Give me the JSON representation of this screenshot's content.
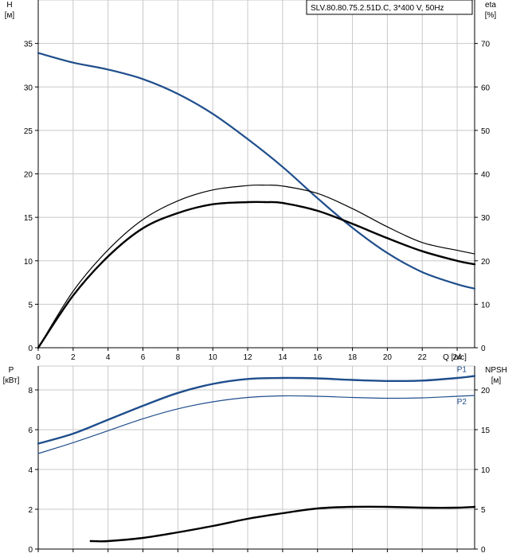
{
  "legend": "SLV.80.80.75.2.51D.C, 3*400 V, 50Hz",
  "top_chart": {
    "left_axis_label": "H",
    "left_axis_unit": "[м]",
    "right_axis_label": "eta",
    "right_axis_unit": "[%]",
    "x_axis_label": "Q [л/с]"
  },
  "bottom_chart": {
    "left_axis_label": "P",
    "left_axis_unit": "[кВт]",
    "right_axis_label": "NPSH",
    "right_axis_unit": "[м]"
  },
  "colors": {
    "blue": "#1f4e8c",
    "black": "#000000",
    "grid": "#c8c8c8"
  },
  "chart_data": [
    {
      "type": "line",
      "x_label": "Q [л/с]",
      "xlim": [
        0,
        25
      ],
      "x_ticks": [
        0,
        2,
        4,
        6,
        8,
        10,
        12,
        14,
        16,
        18,
        20,
        22,
        24
      ],
      "y_left_ticks": [
        0,
        5,
        10,
        15,
        20,
        25,
        30,
        35
      ],
      "y_right_ticks": [
        0,
        10,
        20,
        30,
        40,
        50,
        60,
        70
      ],
      "ylim_left": [
        0,
        40
      ],
      "ylim_right": [
        0,
        80
      ],
      "series": [
        {
          "axis": "left",
          "color": "#1f4e8c",
          "width": 2.2,
          "x": [
            0,
            2,
            4,
            6,
            8,
            10,
            12,
            14,
            16,
            18,
            20,
            22,
            24,
            25
          ],
          "y": [
            33.9,
            32.8,
            32.0,
            30.9,
            29.2,
            26.9,
            24.0,
            20.8,
            17.2,
            13.8,
            10.9,
            8.7,
            7.3,
            6.8
          ]
        },
        {
          "axis": "right",
          "color": "#000000",
          "width": 1.2,
          "x": [
            0,
            2,
            4,
            6,
            8,
            10,
            12,
            13,
            14,
            16,
            18,
            20,
            22,
            24,
            25
          ],
          "y": [
            0,
            13,
            22.5,
            29.5,
            33.8,
            36.3,
            37.3,
            37.4,
            37.2,
            35.5,
            32.0,
            27.8,
            24.2,
            22.4,
            21.6
          ]
        },
        {
          "axis": "right",
          "color": "#000000",
          "width": 2.4,
          "x": [
            0,
            2,
            4,
            6,
            8,
            10,
            12,
            13,
            14,
            16,
            18,
            20,
            22,
            24,
            25
          ],
          "y": [
            0,
            12,
            21,
            27.5,
            31.0,
            33.0,
            33.5,
            33.5,
            33.3,
            31.5,
            28.5,
            25.2,
            22.2,
            20.0,
            19.2
          ]
        }
      ]
    },
    {
      "type": "line",
      "xlim": [
        0,
        25
      ],
      "x_ticks": [
        0,
        2,
        4,
        6,
        8,
        10,
        12,
        14,
        16,
        18,
        20,
        22,
        24
      ],
      "y_left_ticks": [
        0,
        2,
        4,
        6,
        8
      ],
      "y_right_ticks": [
        0,
        5,
        10,
        15,
        20
      ],
      "ylim_left": [
        0,
        9.2
      ],
      "ylim_right": [
        0,
        23
      ],
      "series": [
        {
          "name": "P1",
          "axis": "left",
          "color": "#1f4e8c",
          "width": 2.4,
          "x": [
            0,
            2,
            4,
            6,
            8,
            10,
            12,
            14,
            16,
            18,
            20,
            22,
            24,
            25
          ],
          "y": [
            5.3,
            5.8,
            6.5,
            7.2,
            7.85,
            8.3,
            8.55,
            8.6,
            8.58,
            8.5,
            8.45,
            8.47,
            8.6,
            8.7
          ]
        },
        {
          "name": "P2",
          "axis": "left",
          "color": "#1f4e8c",
          "width": 1.2,
          "x": [
            0,
            2,
            4,
            6,
            8,
            10,
            12,
            14,
            16,
            18,
            20,
            22,
            24,
            25
          ],
          "y": [
            4.8,
            5.35,
            5.95,
            6.55,
            7.05,
            7.4,
            7.62,
            7.7,
            7.68,
            7.62,
            7.58,
            7.6,
            7.68,
            7.72
          ]
        },
        {
          "axis": "right",
          "color": "#000000",
          "width": 2.4,
          "x": [
            3,
            4,
            6,
            8,
            10,
            12,
            14,
            16,
            18,
            20,
            22,
            24,
            25
          ],
          "y": [
            1.0,
            1.0,
            1.4,
            2.1,
            2.9,
            3.8,
            4.5,
            5.1,
            5.3,
            5.3,
            5.2,
            5.2,
            5.3
          ]
        }
      ]
    }
  ]
}
